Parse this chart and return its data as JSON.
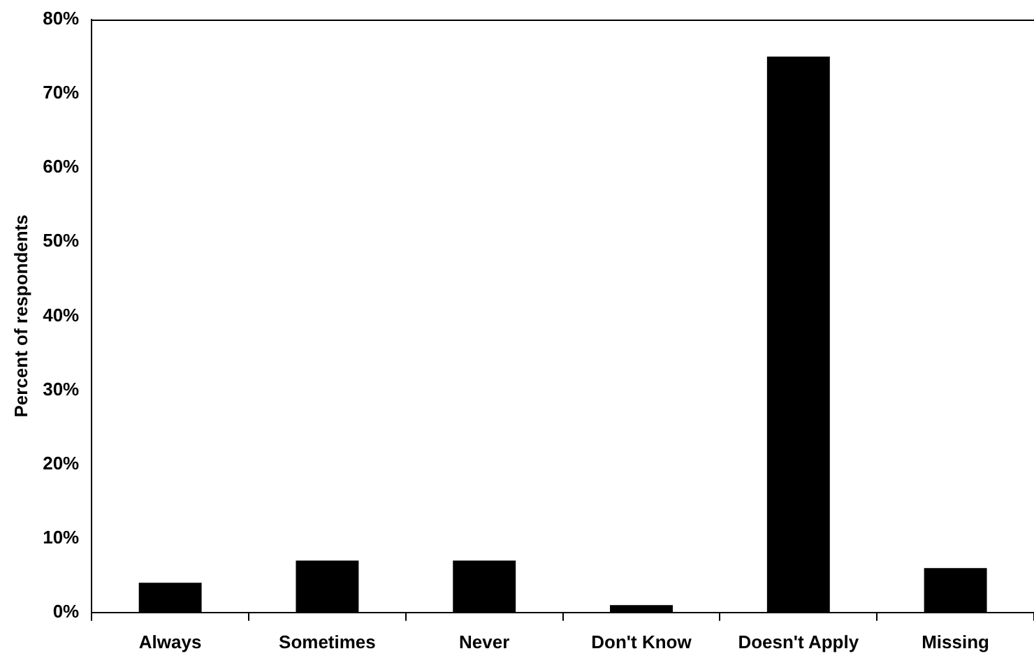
{
  "chart_data": {
    "type": "bar",
    "ylabel": "Percent of respondents",
    "categories": [
      "Always",
      "Sometimes",
      "Never",
      "Don't Know",
      "Doesn't Apply",
      "Missing"
    ],
    "values": [
      4,
      7,
      7,
      1,
      75,
      6
    ],
    "color": "#000000",
    "grid": false,
    "legend": false,
    "ylim": [
      0,
      80
    ],
    "yticks": [
      {
        "value": 0,
        "label": "0%"
      },
      {
        "value": 10,
        "label": "10%"
      },
      {
        "value": 20,
        "label": "20%"
      },
      {
        "value": 30,
        "label": "30%"
      },
      {
        "value": 40,
        "label": "40%"
      },
      {
        "value": 50,
        "label": "50%"
      },
      {
        "value": 60,
        "label": "60%"
      },
      {
        "value": 70,
        "label": "70%"
      },
      {
        "value": 80,
        "label": "80%"
      }
    ]
  }
}
